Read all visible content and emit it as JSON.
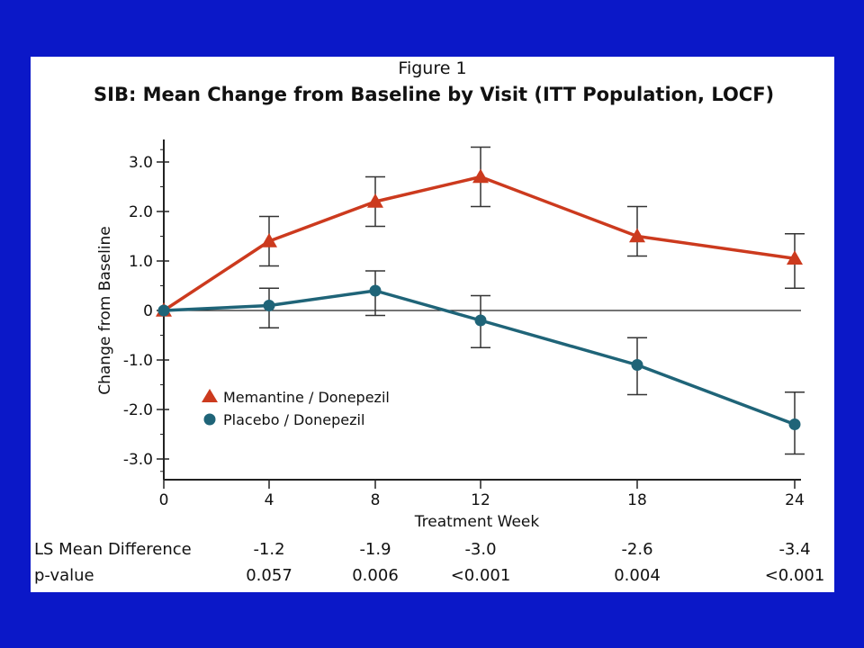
{
  "chart_data": {
    "type": "line",
    "figure_label": "Figure 1",
    "title": "SIB: Mean Change from Baseline by Visit (ITT Population, LOCF)",
    "xlabel": "Treatment Week",
    "ylabel": "Change from Baseline",
    "x": [
      0,
      4,
      8,
      12,
      18,
      24
    ],
    "x_tick_labels": [
      "0",
      "4",
      "8",
      "12",
      "18",
      "24"
    ],
    "y_ticks": [
      3.0,
      2.0,
      1.0,
      0,
      -1.0,
      -2.0,
      -3.0
    ],
    "y_tick_labels": [
      "3.0",
      "2.0",
      "1.0",
      "0",
      "-1.0",
      "-2.0",
      "-3.0"
    ],
    "ylim": [
      -3.3,
      3.4
    ],
    "xlim": [
      0,
      24
    ],
    "x_axis_scale": "categorical-visits",
    "grid": false,
    "zero_line": true,
    "legend_position": "lower-left",
    "series": [
      {
        "name": "Memantine  / Donepezil",
        "color": "#cc3a1e",
        "marker": "triangle",
        "values": [
          0.0,
          1.4,
          2.2,
          2.7,
          1.5,
          1.05
        ],
        "error_low": [
          0.0,
          0.9,
          1.7,
          2.1,
          1.1,
          0.45
        ],
        "error_high": [
          0.0,
          1.9,
          2.7,
          3.3,
          2.1,
          1.55
        ]
      },
      {
        "name": "Placebo / Donepezil",
        "color": "#1f6478",
        "marker": "circle",
        "values": [
          0.0,
          0.1,
          0.4,
          -0.2,
          -1.1,
          -2.3
        ],
        "error_low": [
          0.0,
          -0.35,
          -0.1,
          -0.75,
          -1.7,
          -2.9
        ],
        "error_high": [
          0.0,
          0.45,
          0.8,
          0.3,
          -0.55,
          -1.65
        ]
      }
    ]
  },
  "table": {
    "rows": [
      {
        "label": "LS Mean Difference",
        "values": [
          "-1.2",
          "-1.9",
          "-3.0",
          "-2.6",
          "-3.4"
        ]
      },
      {
        "label": "p-value",
        "values": [
          "0.057",
          "0.006",
          "<0.001",
          "0.004",
          "<0.001"
        ]
      }
    ]
  }
}
